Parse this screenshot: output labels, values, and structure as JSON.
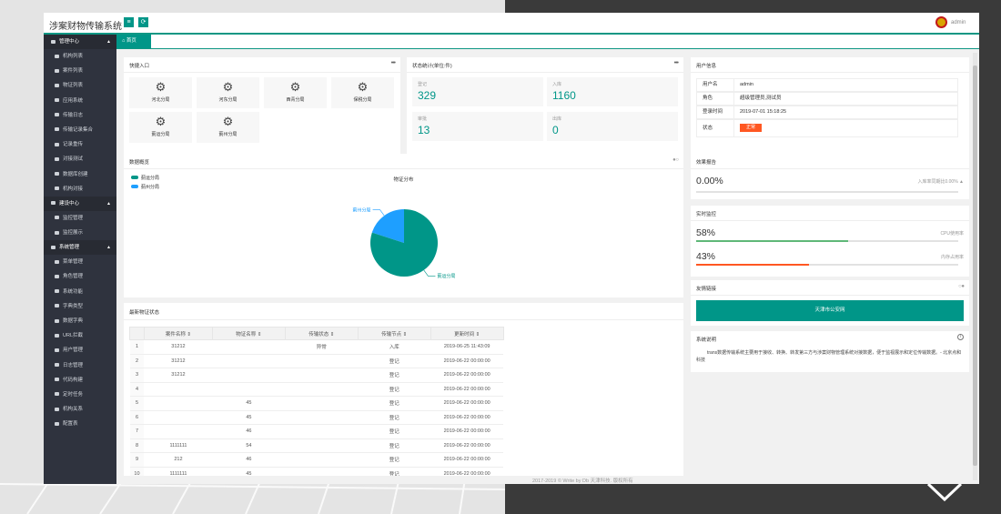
{
  "app": {
    "title": "涉案财物传输系统",
    "user": "admin"
  },
  "sidebar": {
    "groups": [
      {
        "label": "管理中心",
        "items": [
          "机构列表",
          "案件列表",
          "物证列表",
          "应用系统",
          "传输日志",
          "传输记录集合",
          "记录重传",
          "对接测试",
          "数据库创建",
          "机构对接"
        ]
      },
      {
        "label": "建设中心",
        "items": [
          "监控管理",
          "监控展示"
        ]
      },
      {
        "label": "系统管理",
        "items": [
          "菜单管理",
          "角色管理",
          "系统功能",
          "字典类型",
          "数据字典",
          "URL拦截",
          "用户管理",
          "日志管理",
          "代码构建",
          "定时任务",
          "机构关系",
          "配置表"
        ]
      }
    ]
  },
  "tabs": {
    "home": "首页"
  },
  "quick": {
    "title": "快捷入口",
    "items": [
      "河北分局",
      "河东分局",
      "西青分局",
      "保税分局",
      "蓟运分局",
      "蓟州分局"
    ]
  },
  "stats": {
    "title": "状态统计(单位:件)",
    "items": [
      {
        "label": "登记",
        "value": "329"
      },
      {
        "label": "入库",
        "value": "1160"
      },
      {
        "label": "审批",
        "value": "13"
      },
      {
        "label": "出库",
        "value": "0"
      }
    ]
  },
  "userinfo": {
    "title": "用户信息",
    "rows": [
      {
        "key": "用户名",
        "value": "admin"
      },
      {
        "key": "角色",
        "value": "超级管理员,测试员"
      },
      {
        "key": "登录时间",
        "value": "2019-07-01 15:18:25"
      }
    ],
    "status_key": "状态",
    "status_btn": "正常"
  },
  "overview": {
    "title": "数据概览",
    "legend": [
      "蓟运分局",
      "蓟州分局"
    ]
  },
  "chart_data": {
    "type": "pie",
    "title": "物证分布",
    "categories": [
      "蓟运分局",
      "蓟州分局"
    ],
    "values": [
      80,
      20
    ],
    "colors": [
      "#009688",
      "#1e9fff"
    ],
    "legend_position": "top-left"
  },
  "effect": {
    "title": "效果报告",
    "value": "0.00%",
    "note": "入库率同期比0.00%",
    "fill": 0
  },
  "realtime": {
    "title": "实时监控",
    "cpu": {
      "value": "58%",
      "label": "CPU使用率",
      "fill": 0.58,
      "color": "#5fb878"
    },
    "mem": {
      "value": "43%",
      "label": "内存占用率",
      "fill": 0.43,
      "color": "#ff5722"
    }
  },
  "links": {
    "title": "友情链接",
    "btn": "天津市公安网"
  },
  "about": {
    "title": "系统说明",
    "text": "trans数据传输系统主要用于接收、转换、转发第三方与涉案财物管理系统对接数据，便于监视展示和定位传输数据。- 北京点和科技"
  },
  "latest": {
    "title": "最新物证状态",
    "headers": [
      "案件名称",
      "物证名称",
      "传输状态",
      "传输节点",
      "更新时间"
    ],
    "rows": [
      [
        "1",
        "31212",
        "",
        "异常",
        "入库",
        "2019-06-25 11:43:09"
      ],
      [
        "2",
        "31212",
        "",
        "",
        "登记",
        "2019-06-22 00:00:00"
      ],
      [
        "3",
        "31212",
        "",
        "",
        "登记",
        "2019-06-22 00:00:00"
      ],
      [
        "4",
        "",
        "",
        "",
        "登记",
        "2019-06-22 00:00:00"
      ],
      [
        "5",
        "",
        "45",
        "",
        "登记",
        "2019-06-22 00:00:00"
      ],
      [
        "6",
        "",
        "45",
        "",
        "登记",
        "2019-06-22 00:00:00"
      ],
      [
        "7",
        "",
        "46",
        "",
        "登记",
        "2019-06-22 00:00:00"
      ],
      [
        "8",
        "1111111",
        "54",
        "",
        "登记",
        "2019-06-22 00:00:00"
      ],
      [
        "9",
        "212",
        "46",
        "",
        "登记",
        "2019-06-22 00:00:00"
      ],
      [
        "10",
        "1111111",
        "45",
        "",
        "登记",
        "2019-06-22 00:00:00"
      ]
    ]
  },
  "footer": "2017-2019 © Write by Db 天津科技. 版权所有"
}
